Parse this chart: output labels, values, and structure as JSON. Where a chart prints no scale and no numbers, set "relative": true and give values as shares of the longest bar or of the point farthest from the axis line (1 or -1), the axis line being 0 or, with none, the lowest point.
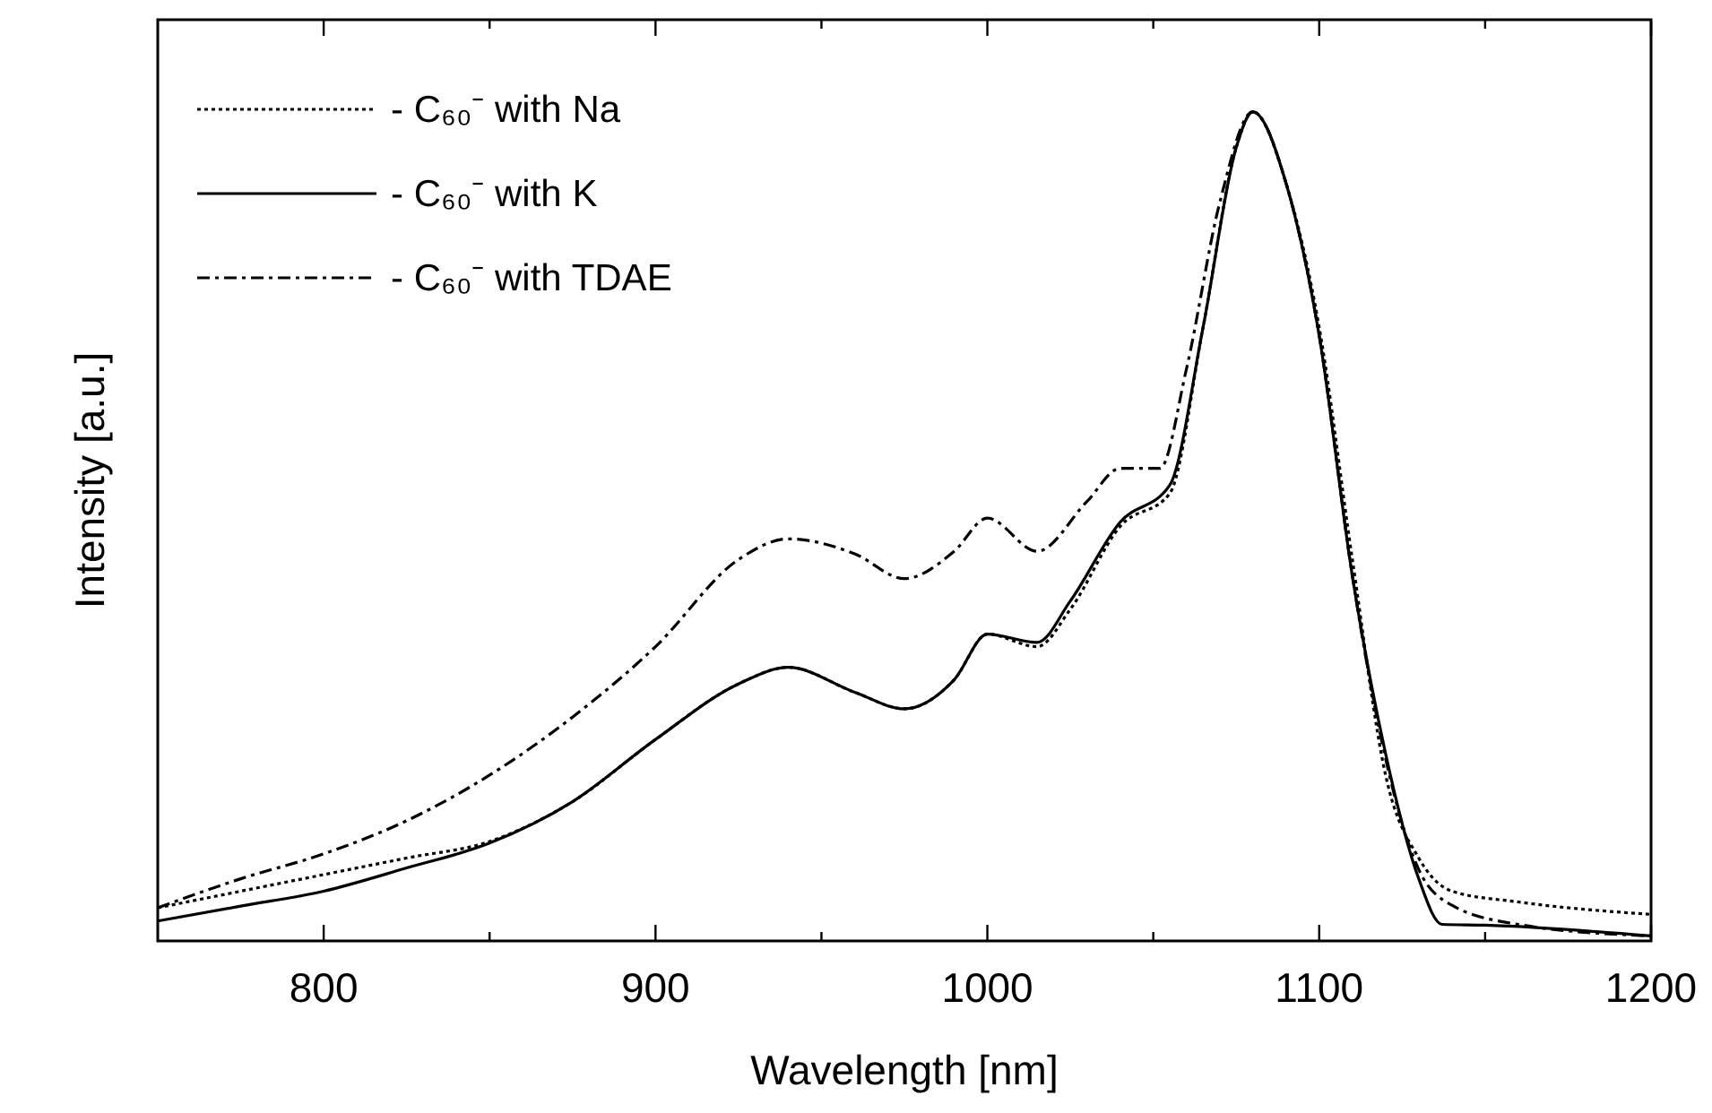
{
  "chart_data": {
    "type": "line",
    "xlabel": "Wavelength [nm]",
    "ylabel": "Intensity [a.u.]",
    "relative": true,
    "xlim": [
      750,
      1200
    ],
    "xticks": [
      800,
      {
        "value": 850,
        "label": null
      },
      900,
      {
        "value": 950,
        "label": null
      },
      1000,
      {
        "value": 1050,
        "label": null
      },
      1100,
      {
        "value": 1150,
        "label": null
      },
      1200
    ],
    "legend": "top left",
    "series": [
      {
        "name": "- C₆₀⁻ with Na",
        "color": "#000000",
        "line_style": "dotted",
        "x": [
          750,
          775,
          800,
          825,
          850,
          875,
          900,
          925,
          940,
          960,
          975,
          990,
          1000,
          1015,
          1025,
          1040,
          1055,
          1065,
          1075,
          1080,
          1090,
          1100,
          1110,
          1120,
          1130,
          1140,
          1160,
          1200
        ],
        "values": [
          0.04,
          0.06,
          0.08,
          0.1,
          0.12,
          0.168,
          0.243,
          0.31,
          0.33,
          0.3,
          0.28,
          0.315,
          0.37,
          0.355,
          0.4,
          0.5,
          0.54,
          0.74,
          0.957,
          1,
          0.914,
          0.74,
          0.46,
          0.2,
          0.1,
          0.06,
          0.047,
          0.032
        ]
      },
      {
        "name": "- C₆₀⁻ with K",
        "color": "#000000",
        "line_style": "solid",
        "x": [
          750,
          775,
          800,
          825,
          850,
          875,
          900,
          925,
          940,
          960,
          975,
          990,
          1000,
          1015,
          1025,
          1040,
          1055,
          1065,
          1075,
          1080,
          1090,
          1100,
          1110,
          1120,
          1130,
          1137,
          1150,
          1200
        ],
        "values": [
          0.024,
          0.042,
          0.06,
          0.088,
          0.118,
          0.168,
          0.243,
          0.31,
          0.33,
          0.3,
          0.28,
          0.315,
          0.37,
          0.36,
          0.41,
          0.505,
          0.55,
          0.74,
          0.957,
          1,
          0.914,
          0.73,
          0.44,
          0.226,
          0.075,
          0.02,
          0.019,
          0.006
        ]
      },
      {
        "name": "- C₆₀⁻ with TDAE",
        "color": "#000000",
        "line_style": "dashed",
        "x": [
          750,
          775,
          800,
          825,
          850,
          875,
          900,
          925,
          940,
          960,
          975,
          990,
          1000,
          1015,
          1030,
          1040,
          1052,
          1060,
          1070,
          1080,
          1090,
          1100,
          1110,
          1120,
          1130,
          1140,
          1160,
          1200
        ],
        "values": [
          0.04,
          0.075,
          0.105,
          0.145,
          0.2,
          0.27,
          0.355,
          0.46,
          0.485,
          0.467,
          0.437,
          0.47,
          0.51,
          0.47,
          0.53,
          0.57,
          0.57,
          0.69,
          0.89,
          1,
          0.914,
          0.73,
          0.44,
          0.22,
          0.086,
          0.043,
          0.02,
          0.006
        ]
      }
    ]
  }
}
